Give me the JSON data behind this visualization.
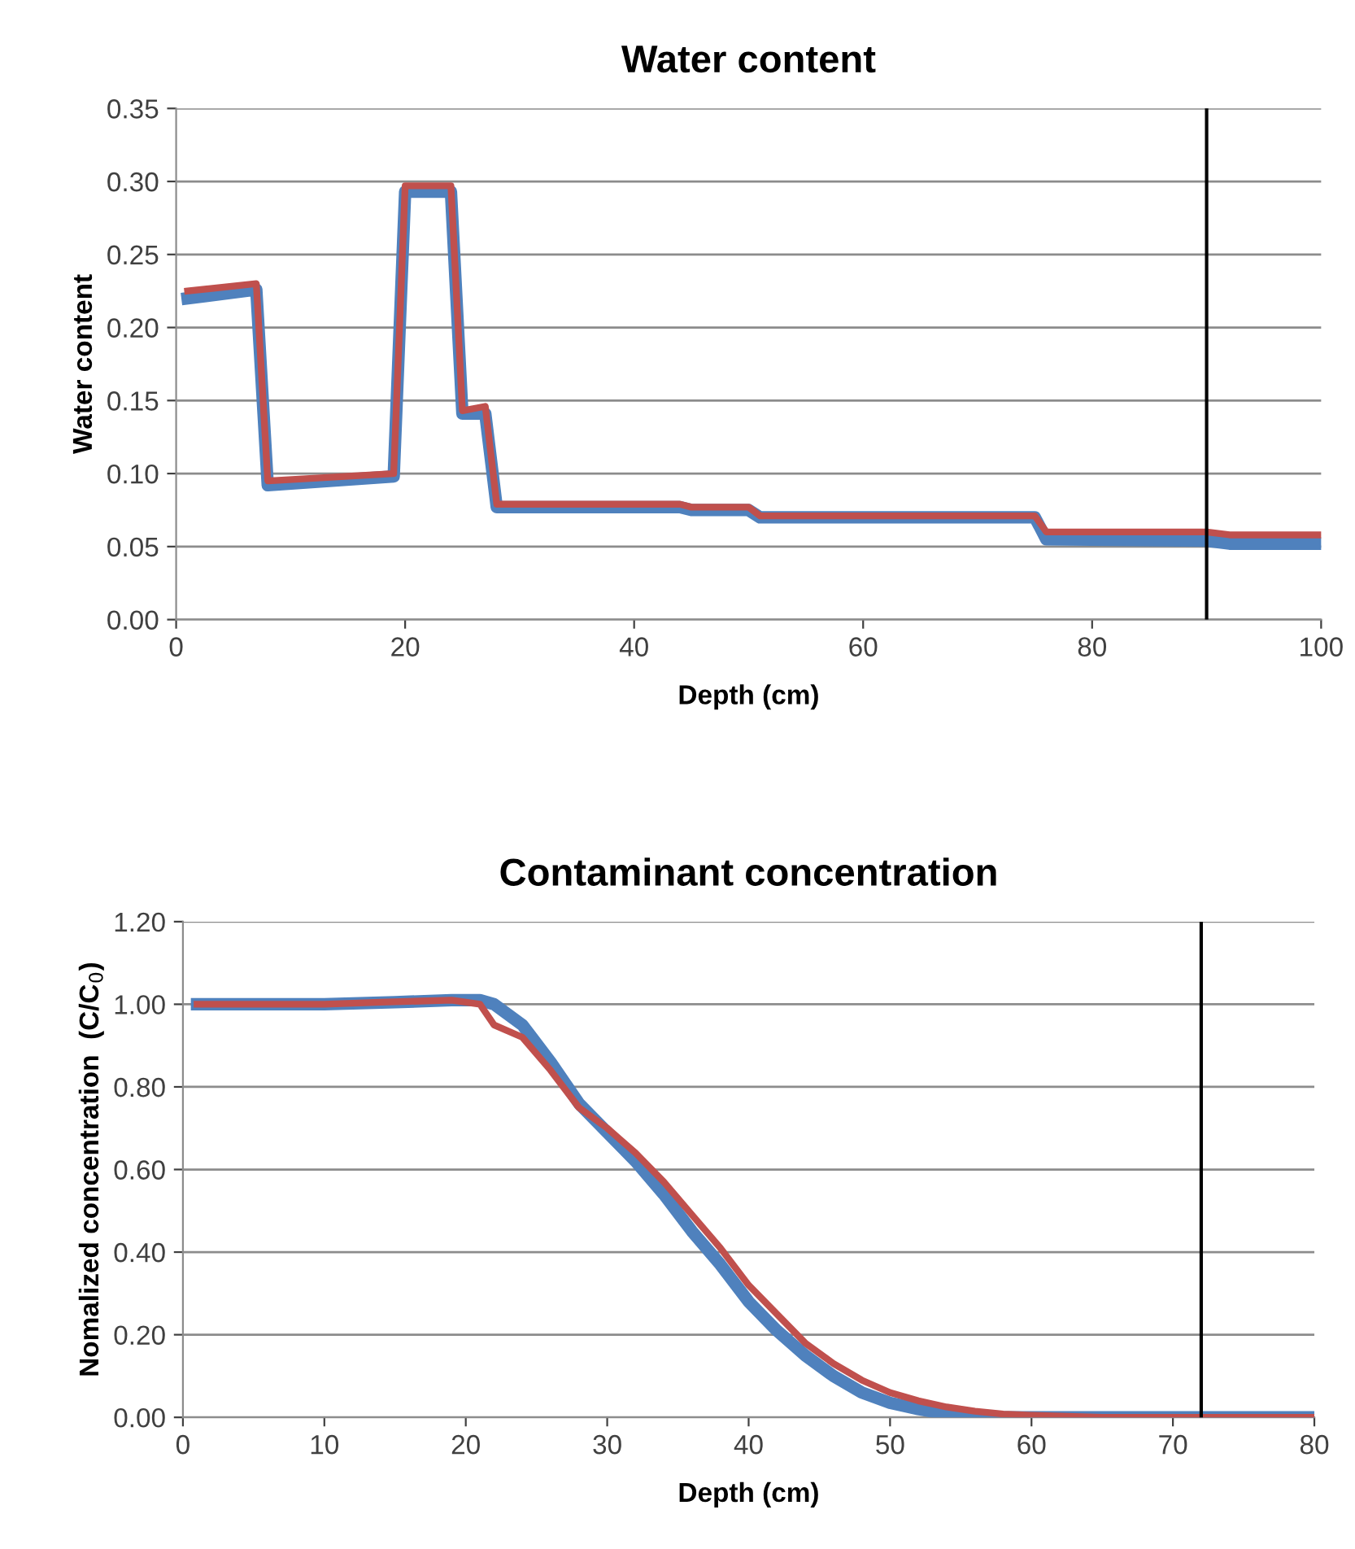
{
  "chart_data": [
    {
      "type": "line",
      "title": "Water content",
      "xlabel": "Depth (cm)",
      "ylabel": "Water content",
      "xlim": [
        0,
        100
      ],
      "xticks": [
        0,
        20,
        40,
        60,
        80,
        100
      ],
      "ylim": [
        0,
        0.35
      ],
      "yticks": [
        {
          "value": 0,
          "label": "0.00"
        },
        {
          "value": 0.05,
          "label": "0.05"
        },
        {
          "value": 0.1,
          "label": "0.10"
        },
        {
          "value": 0.15,
          "label": "0.15"
        },
        {
          "value": 0.2,
          "label": "0.20"
        },
        {
          "value": 0.25,
          "label": "0.25"
        },
        {
          "value": 0.3,
          "label": "0.30"
        },
        {
          "value": 0.35,
          "label": "0.35"
        }
      ],
      "grid": "y",
      "marker": "none",
      "line_style": "solid",
      "ref_lines": [
        {
          "axis": "x",
          "value": 90,
          "color": "#000000"
        }
      ],
      "series": [
        {
          "color": "#4f81bd",
          "x": [
            1,
            7,
            8,
            19,
            20,
            24,
            25,
            27,
            28,
            44,
            45,
            50,
            51,
            75,
            76,
            90,
            92,
            100
          ],
          "values": [
            0.22,
            0.226,
            0.092,
            0.098,
            0.293,
            0.293,
            0.141,
            0.141,
            0.077,
            0.077,
            0.075,
            0.075,
            0.07,
            0.07,
            0.055,
            0.054,
            0.052,
            0.052
          ]
        },
        {
          "color": "#c0504d",
          "x": [
            1,
            7,
            8,
            19,
            20,
            24,
            25,
            27,
            28,
            44,
            45,
            50,
            51,
            75,
            76,
            90,
            92,
            100
          ],
          "values": [
            0.225,
            0.23,
            0.095,
            0.1,
            0.297,
            0.297,
            0.143,
            0.146,
            0.079,
            0.079,
            0.077,
            0.077,
            0.071,
            0.071,
            0.06,
            0.06,
            0.058,
            0.058
          ]
        }
      ]
    },
    {
      "type": "line",
      "title": "Contaminant concentration",
      "xlabel": "Depth (cm)",
      "ylabel": "Nomalized concentration  (C/C$_{0}$)",
      "xlim": [
        0,
        80
      ],
      "xticks": [
        0,
        10,
        20,
        30,
        40,
        50,
        60,
        70,
        80
      ],
      "ylim": [
        0,
        1.2
      ],
      "yticks": [
        {
          "value": 0,
          "label": "0.00"
        },
        {
          "value": 0.2,
          "label": "0.20"
        },
        {
          "value": 0.4,
          "label": "0.40"
        },
        {
          "value": 0.6,
          "label": "0.60"
        },
        {
          "value": 0.8,
          "label": "0.80"
        },
        {
          "value": 1.0,
          "label": "1.00"
        },
        {
          "value": 1.2,
          "label": "1.20"
        }
      ],
      "grid": "y",
      "marker": "none",
      "line_style": "solid",
      "ref_lines": [
        {
          "axis": "x",
          "value": 72,
          "color": "#000000"
        }
      ],
      "series": [
        {
          "color": "#4f81bd",
          "x": [
            1,
            10,
            15,
            19,
            21,
            22,
            24,
            26,
            28,
            30,
            32,
            34,
            36,
            38,
            40,
            42,
            44,
            46,
            48,
            50,
            52,
            54,
            56,
            60,
            80
          ],
          "values": [
            1.0,
            1.0,
            1.005,
            1.01,
            1.01,
            1.0,
            0.95,
            0.86,
            0.76,
            0.69,
            0.62,
            0.54,
            0.45,
            0.37,
            0.28,
            0.21,
            0.15,
            0.1,
            0.06,
            0.035,
            0.02,
            0.008,
            0.0,
            0.0,
            0.0
          ]
        },
        {
          "color": "#c0504d",
          "x": [
            1,
            10,
            14,
            19,
            21,
            22,
            24,
            26,
            28,
            30,
            32,
            34,
            36,
            38,
            40,
            42,
            44,
            46,
            48,
            50,
            52,
            54,
            56,
            58,
            60,
            62,
            65,
            80
          ],
          "values": [
            1.0,
            1.0,
            1.005,
            1.01,
            1.0,
            0.95,
            0.92,
            0.84,
            0.75,
            0.7,
            0.64,
            0.57,
            0.49,
            0.41,
            0.32,
            0.25,
            0.18,
            0.13,
            0.09,
            0.06,
            0.04,
            0.025,
            0.015,
            0.008,
            0.005,
            0.003,
            0.0,
            0.0
          ]
        }
      ]
    }
  ]
}
